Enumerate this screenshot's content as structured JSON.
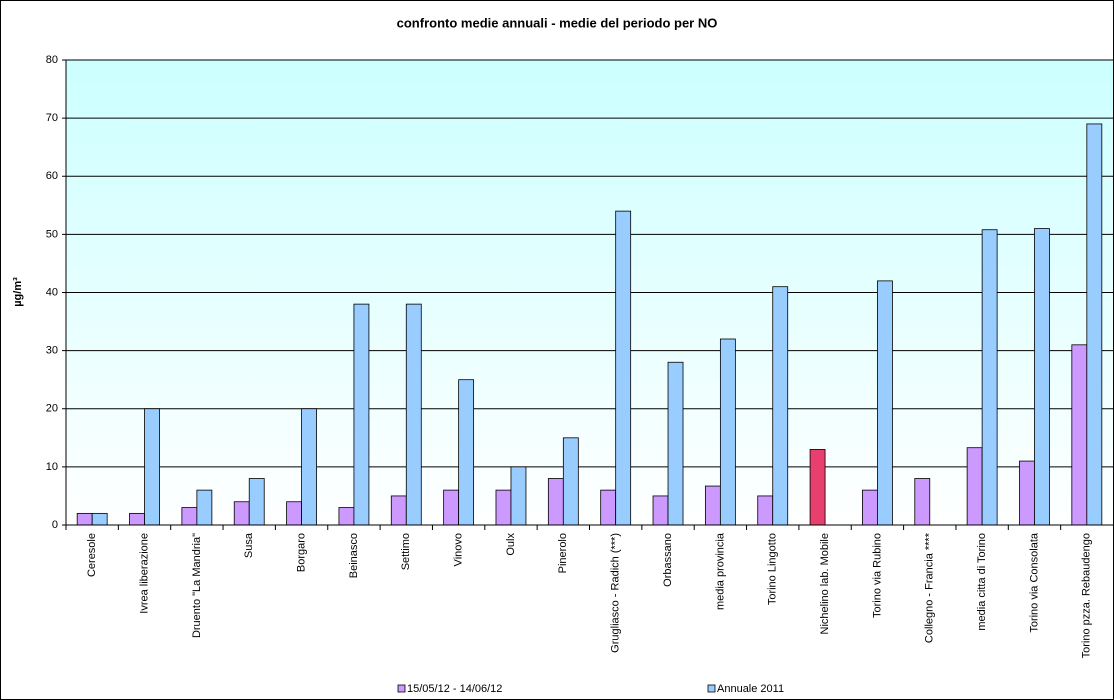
{
  "chart_data": {
    "type": "bar",
    "title": "confronto medie annuali - medie del periodo per NO",
    "y_label": "µg/m³",
    "categories": [
      "Ceresole",
      "Ivrea liberazione",
      "Druento \"La Mandria\"",
      "Susa",
      "Borgaro",
      "Beinasco",
      "Settimo",
      "Vinovo",
      "Oulx",
      "Pinerolo",
      "Grugliasco - Radich (***)",
      "Orbassano",
      "media provincia",
      "Torino Lingotto",
      "Nichelino lab. Mobile",
      "Torino via Rubino",
      "Collegno - Francia ****",
      "media citta di Torino",
      "Torino via Consolata",
      "Torino pzza. Rebaudengo"
    ],
    "series": [
      {
        "name": "15/05/12 - 14/06/12",
        "color": "#cc99ff",
        "colors": [
          "#cc99ff",
          "#cc99ff",
          "#cc99ff",
          "#cc99ff",
          "#cc99ff",
          "#cc99ff",
          "#cc99ff",
          "#cc99ff",
          "#cc99ff",
          "#cc99ff",
          "#cc99ff",
          "#cc99ff",
          "#cc99ff",
          "#cc99ff",
          "#e8406e",
          "#cc99ff",
          "#cc99ff",
          "#cc99ff",
          "#cc99ff",
          "#cc99ff"
        ],
        "values": [
          2,
          2,
          3,
          4,
          4,
          3,
          5,
          6,
          6,
          8,
          6,
          5,
          6.7,
          5,
          13,
          6,
          8,
          13.3,
          11,
          31
        ]
      },
      {
        "name": "Annuale 2011",
        "color": "#99ccff",
        "values": [
          2,
          20,
          6,
          8,
          20,
          38,
          38,
          25,
          10,
          15,
          54,
          28,
          32,
          41,
          null,
          42,
          null,
          50.8,
          51,
          69
        ]
      }
    ],
    "ylim": [
      0,
      80
    ],
    "yticks": [
      0,
      10,
      20,
      30,
      40,
      50,
      60,
      70,
      80
    ],
    "grid": true,
    "legend": "bottom"
  }
}
